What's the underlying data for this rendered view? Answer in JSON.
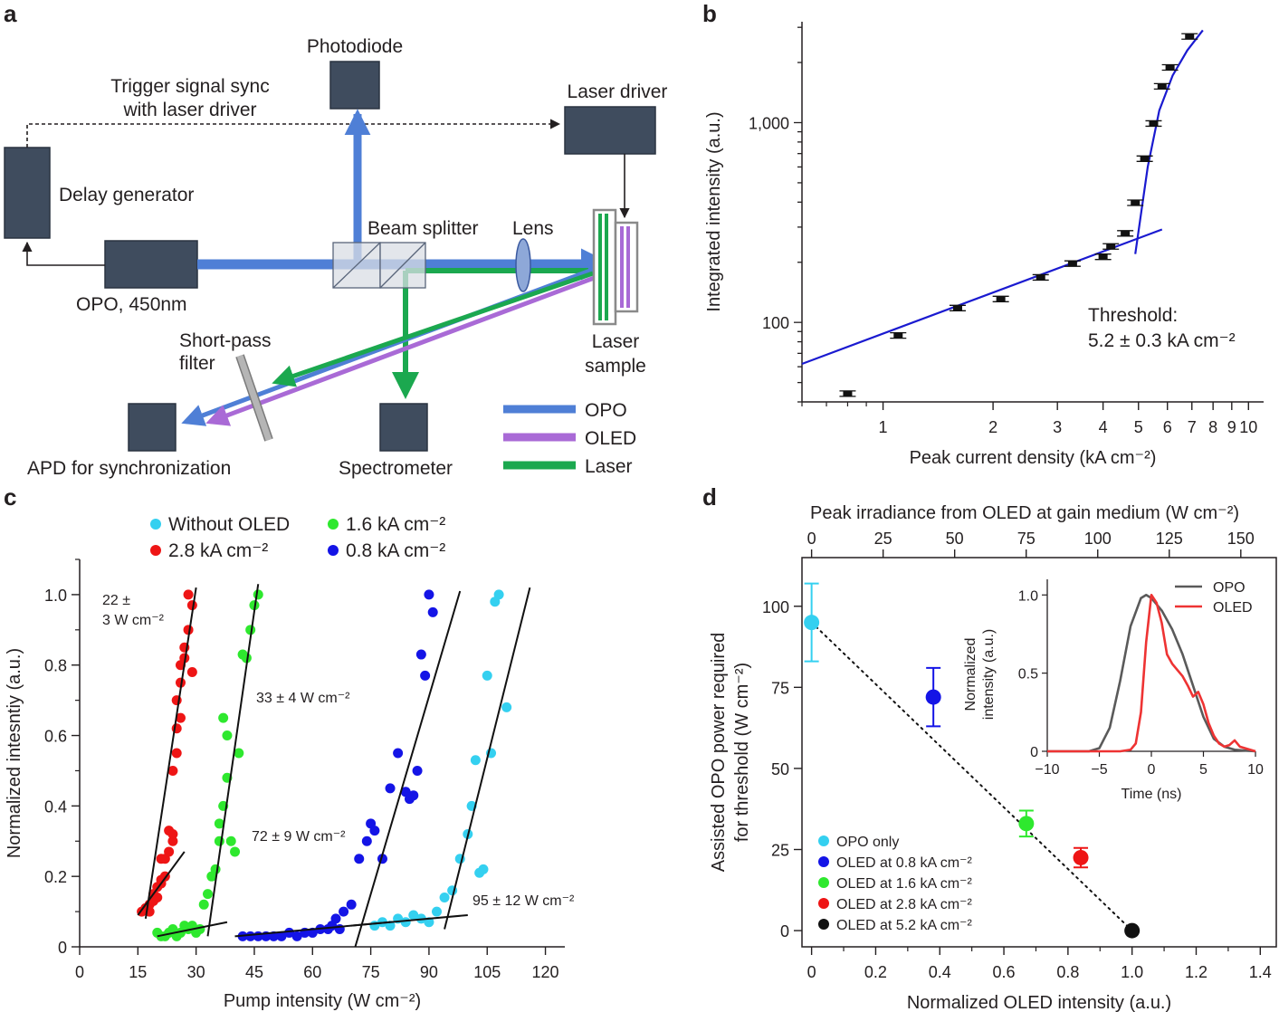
{
  "colors": {
    "box": "#3f4c5e",
    "opo": "#4f7fd6",
    "oled": "#a96ad6",
    "laser": "#1ba84f",
    "cyan": "#34d0f0",
    "green": "#2ee82e",
    "red": "#ee1515",
    "blue": "#1414e6",
    "fit": "#1a1ad0"
  },
  "panel_a": {
    "letter": "a",
    "photodiode": "Photodiode",
    "trigger_line1": "Trigger signal sync",
    "trigger_line2": "with laser driver",
    "laser_driver": "Laser driver",
    "delay_generator": "Delay generator",
    "beam_splitter": "Beam splitter",
    "lens": "Lens",
    "opo_source": "OPO, 450nm",
    "short_pass_line1": "Short-pass",
    "short_pass_line2": "filter",
    "laser_sample_line1": "Laser",
    "laser_sample_line2": "sample",
    "apd": "APD for synchronization",
    "spectrometer": "Spectrometer",
    "legend": [
      "OPO",
      "OLED",
      "Laser"
    ]
  },
  "panel_b": {
    "letter": "b",
    "threshold_line1": "Threshold:",
    "threshold_line2": "5.2 ± 0.3 kA cm⁻²",
    "chart_data": {
      "type": "scatter",
      "xlabel": "Peak current density (kA cm⁻²)",
      "ylabel": "Integrated intensity (a.u.)",
      "x_scale": "log",
      "y_scale": "log",
      "xlim": [
        0.6,
        11
      ],
      "ylim": [
        40,
        3200
      ],
      "xticks": [
        1,
        2,
        3,
        4,
        5,
        6,
        7,
        8,
        9,
        10
      ],
      "yticks": [
        100,
        1000
      ],
      "ytick_labels": [
        "100",
        "1,000"
      ],
      "points": {
        "x": [
          0.8,
          1.1,
          1.6,
          2.1,
          2.7,
          3.3,
          4.0,
          4.2,
          4.6,
          4.9,
          5.2,
          5.5,
          5.8,
          6.1,
          6.9
        ],
        "y": [
          44,
          86,
          118,
          131,
          168,
          197,
          213,
          240,
          279,
          397,
          660,
          990,
          1520,
          1890,
          2700
        ]
      },
      "fits": [
        {
          "x": [
            0.6,
            5.8
          ],
          "y": [
            62,
            292
          ]
        },
        {
          "x": [
            4.9,
            5.3,
            5.7,
            6.2,
            6.8,
            7.5
          ],
          "y": [
            220,
            600,
            1150,
            1720,
            2300,
            2900
          ]
        }
      ]
    }
  },
  "panel_c": {
    "letter": "c",
    "legend": [
      "Without OLED",
      "1.6 kA cm⁻²",
      "2.8 kA cm⁻²",
      "0.8 kA cm⁻²"
    ],
    "annotations": [
      "22 ±",
      "3 W cm⁻²",
      "33 ± 4 W cm⁻²",
      "72 ± 9 W cm⁻²",
      "95 ± 12 W cm⁻²"
    ],
    "chart_data": {
      "type": "scatter",
      "xlabel": "Pump intensity (W cm⁻²)",
      "ylabel": "Normalized intesntiy (a.u.)",
      "xlim": [
        0,
        125
      ],
      "ylim": [
        0,
        1.1
      ],
      "xticks": [
        0,
        15,
        30,
        45,
        60,
        75,
        90,
        105,
        120
      ],
      "yticks": [
        0,
        0.2,
        0.4,
        0.6,
        0.8,
        1.0
      ],
      "ytick_labels": [
        "0",
        "0.2",
        "0.4",
        "0.6",
        "0.8",
        "1.0"
      ],
      "series": [
        {
          "name": "2.8 kA cm⁻²",
          "color": "red",
          "x": [
            16,
            17,
            18,
            18,
            19,
            19,
            20,
            20,
            21,
            21,
            21,
            22,
            22,
            23,
            23,
            24,
            24,
            24,
            25,
            25,
            25,
            26,
            26,
            26,
            27,
            27,
            28,
            28,
            29,
            29
          ],
          "y": [
            0.1,
            0.11,
            0.1,
            0.12,
            0.13,
            0.15,
            0.14,
            0.17,
            0.18,
            0.19,
            0.25,
            0.2,
            0.25,
            0.27,
            0.33,
            0.3,
            0.32,
            0.5,
            0.55,
            0.62,
            0.7,
            0.65,
            0.75,
            0.8,
            0.82,
            0.85,
            0.9,
            1.0,
            0.97,
            0.78
          ]
        },
        {
          "name": "1.6 kA cm⁻²",
          "color": "green",
          "x": [
            20,
            21,
            22,
            23,
            24,
            25,
            26,
            27,
            28,
            29,
            30,
            31,
            32,
            33,
            34,
            35,
            36,
            36,
            37,
            37,
            38,
            38,
            39,
            40,
            41,
            42,
            43,
            44,
            45,
            46
          ],
          "y": [
            0.04,
            0.03,
            0.03,
            0.04,
            0.05,
            0.03,
            0.04,
            0.06,
            0.05,
            0.06,
            0.04,
            0.05,
            0.12,
            0.15,
            0.2,
            0.22,
            0.3,
            0.35,
            0.4,
            0.65,
            0.48,
            0.6,
            0.3,
            0.27,
            0.55,
            0.83,
            0.82,
            0.9,
            0.97,
            1.0
          ]
        },
        {
          "name": "0.8 kA cm⁻²",
          "color": "blue",
          "x": [
            42,
            44,
            46,
            48,
            50,
            52,
            54,
            56,
            58,
            60,
            62,
            64,
            65,
            66,
            67,
            68,
            70,
            72,
            74,
            75,
            76,
            78,
            80,
            82,
            84,
            85,
            86,
            87,
            88,
            89,
            90,
            91
          ],
          "y": [
            0.03,
            0.03,
            0.03,
            0.03,
            0.03,
            0.03,
            0.04,
            0.03,
            0.04,
            0.04,
            0.05,
            0.05,
            0.06,
            0.08,
            0.05,
            0.1,
            0.12,
            0.25,
            0.3,
            0.35,
            0.33,
            0.25,
            0.45,
            0.55,
            0.44,
            0.42,
            0.43,
            0.5,
            0.83,
            0.77,
            1.0,
            0.95
          ]
        },
        {
          "name": "Without OLED",
          "color": "cyan",
          "x": [
            76,
            78,
            80,
            82,
            84,
            86,
            88,
            90,
            92,
            94,
            96,
            98,
            100,
            101,
            102,
            103,
            104,
            105,
            106,
            107,
            108,
            110
          ],
          "y": [
            0.06,
            0.07,
            0.06,
            0.08,
            0.07,
            0.09,
            0.08,
            0.07,
            0.1,
            0.14,
            0.16,
            0.25,
            0.32,
            0.4,
            0.53,
            0.21,
            0.22,
            0.77,
            0.55,
            0.98,
            1.0,
            0.68
          ]
        }
      ],
      "fits": [
        {
          "x": [
            15,
            27
          ],
          "y": [
            0.09,
            0.27
          ]
        },
        {
          "x": [
            17,
            30
          ],
          "y": [
            0.08,
            1.02
          ]
        },
        {
          "x": [
            20,
            38
          ],
          "y": [
            0.03,
            0.07
          ]
        },
        {
          "x": [
            33,
            46
          ],
          "y": [
            0.03,
            1.03
          ]
        },
        {
          "x": [
            40,
            80
          ],
          "y": [
            0.03,
            0.07
          ]
        },
        {
          "x": [
            71,
            98
          ],
          "y": [
            0.0,
            1.01
          ]
        },
        {
          "x": [
            70,
            100
          ],
          "y": [
            0.06,
            0.09
          ]
        },
        {
          "x": [
            94,
            116
          ],
          "y": [
            0.05,
            1.02
          ]
        }
      ]
    }
  },
  "panel_d": {
    "letter": "d",
    "legend": [
      "OPO only",
      "OLED at 0.8 kA cm⁻²",
      "OLED at 1.6 kA cm⁻²",
      "OLED at 2.8 kA cm⁻²",
      "OLED at 5.2 kA cm⁻²"
    ],
    "chart_data": {
      "type": "scatter",
      "xlabel": "Normalized OLED intensity (a.u.)",
      "ylabel": "Assisted OPO power required for threshold (W cm⁻²)",
      "top_xlabel": "Peak irradiance from OLED at gain medium (W cm⁻²)",
      "xlim": [
        -0.03,
        1.45
      ],
      "ylim": [
        -5,
        115
      ],
      "xticks": [
        0,
        0.2,
        0.4,
        0.6,
        0.8,
        1.0,
        1.2,
        1.4
      ],
      "xtick_labels": [
        "0",
        "0.2",
        "0.4",
        "0.6",
        "0.8",
        "1.0",
        "1.2",
        "1.4"
      ],
      "yticks": [
        0,
        25,
        50,
        75,
        100
      ],
      "top_xticks": [
        0,
        25,
        50,
        75,
        100,
        125,
        150
      ],
      "top_x_per_unit": 112,
      "points": [
        {
          "x": 0.0,
          "y": 95,
          "err": 12,
          "color": "cyan"
        },
        {
          "x": 0.38,
          "y": 72,
          "err": 9,
          "color": "blue"
        },
        {
          "x": 0.67,
          "y": 33,
          "err": 4,
          "color": "green"
        },
        {
          "x": 0.84,
          "y": 22.5,
          "err": 3,
          "color": "red"
        },
        {
          "x": 1.0,
          "y": 0,
          "err": 0,
          "color": "black"
        }
      ],
      "trend": {
        "x": [
          0,
          1.0
        ],
        "y": [
          95,
          0
        ]
      },
      "inset": {
        "type": "line",
        "xlabel": "Time (ns)",
        "ylabel": "Normalized intensity (a.u.)",
        "xlim": [
          -10,
          10
        ],
        "ylim": [
          0,
          1.1
        ],
        "xticks": [
          -10,
          -5,
          0,
          5,
          10
        ],
        "yticks": [
          0,
          0.5,
          1.0
        ],
        "ytick_labels": [
          "0",
          "0.5",
          "1.0"
        ],
        "series": [
          {
            "name": "OPO",
            "color": "#5a5a5a",
            "x": [
              -10,
              -6,
              -5,
              -4,
              -3,
              -2,
              -1,
              -0.5,
              0,
              1,
              2,
              3,
              4,
              5,
              6,
              7,
              8,
              10
            ],
            "y": [
              0,
              0,
              0.02,
              0.15,
              0.45,
              0.8,
              0.98,
              1.0,
              0.98,
              0.9,
              0.78,
              0.62,
              0.42,
              0.22,
              0.08,
              0.03,
              0.01,
              0
            ]
          },
          {
            "name": "OLED",
            "color": "#ee3333",
            "x": [
              -10,
              -3,
              -2,
              -1.5,
              -1,
              -0.5,
              0,
              0.5,
              1,
              1.5,
              2,
              2.5,
              3,
              3.5,
              4,
              4.5,
              5,
              5.5,
              6,
              6.5,
              7,
              7.5,
              8,
              8.5,
              10
            ],
            "y": [
              0,
              0,
              0.01,
              0.05,
              0.25,
              0.7,
              1.0,
              0.95,
              0.82,
              0.62,
              0.56,
              0.52,
              0.48,
              0.42,
              0.35,
              0.38,
              0.3,
              0.18,
              0.1,
              0.05,
              0.03,
              0.04,
              0.07,
              0.03,
              0
            ]
          }
        ]
      }
    }
  }
}
